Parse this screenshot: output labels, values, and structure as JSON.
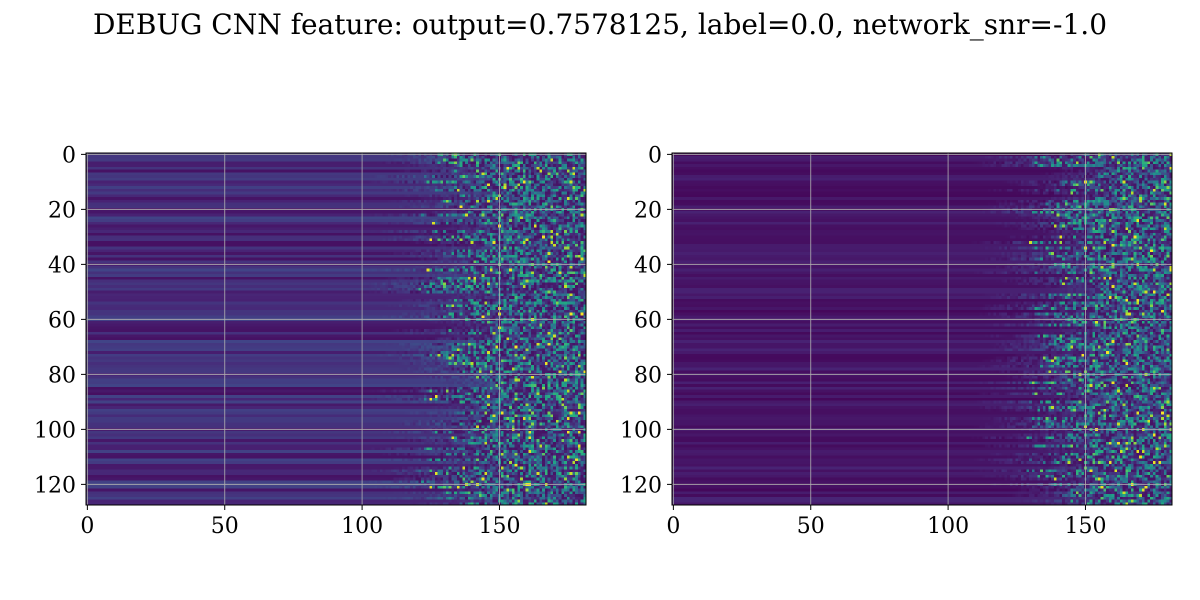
{
  "figure": {
    "title": "DEBUG CNN feature: output=0.7578125, label=0.0, network_snr=-1.0"
  },
  "chart_data": [
    {
      "type": "heatmap",
      "title": "",
      "xlabel": "",
      "ylabel": "",
      "xlim": [
        -0.5,
        181.5
      ],
      "ylim": [
        127.5,
        -0.5
      ],
      "rows": 128,
      "cols": 182,
      "colormap": "viridis",
      "grid": true,
      "x_ticks": [
        0,
        50,
        100,
        150
      ],
      "y_ticks": [
        0,
        20,
        40,
        60,
        80,
        100,
        120
      ],
      "x_tick_labels": [
        "0",
        "50",
        "100",
        "150"
      ],
      "y_tick_labels": [
        "0",
        "20",
        "40",
        "60",
        "80",
        "100",
        "120"
      ],
      "colors": {
        "low": "#440154",
        "mid": "#21918c",
        "high": "#fde725"
      }
    },
    {
      "type": "heatmap",
      "title": "",
      "xlabel": "",
      "ylabel": "",
      "xlim": [
        -0.5,
        181.5
      ],
      "ylim": [
        127.5,
        -0.5
      ],
      "rows": 128,
      "cols": 182,
      "colormap": "viridis",
      "grid": true,
      "x_ticks": [
        0,
        50,
        100,
        150
      ],
      "y_ticks": [
        0,
        20,
        40,
        60,
        80,
        100,
        120
      ],
      "x_tick_labels": [
        "0",
        "50",
        "100",
        "150"
      ],
      "y_tick_labels": [
        "0",
        "20",
        "40",
        "60",
        "80",
        "100",
        "120"
      ],
      "colors": {
        "low": "#440154",
        "mid": "#21918c",
        "high": "#fde725"
      }
    }
  ]
}
